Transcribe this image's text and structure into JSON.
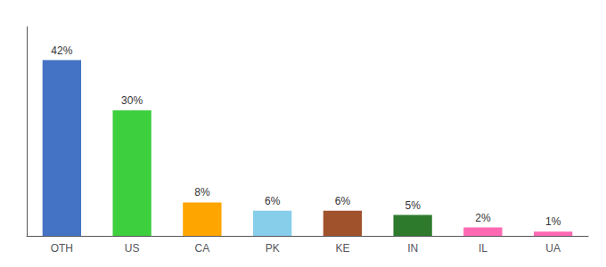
{
  "chart_data": {
    "type": "bar",
    "categories": [
      "OTH",
      "US",
      "CA",
      "PK",
      "KE",
      "IN",
      "IL",
      "UA"
    ],
    "values": [
      42,
      30,
      8,
      6,
      6,
      5,
      2,
      1
    ],
    "value_labels": [
      "42%",
      "30%",
      "8%",
      "6%",
      "6%",
      "5%",
      "2%",
      "1%"
    ],
    "colors": [
      "#4472C4",
      "#3ECF3E",
      "#FFA500",
      "#87CEEB",
      "#A0522D",
      "#2D7A2D",
      "#FF69B4",
      "#FF69B4"
    ],
    "ylim": [
      0,
      50
    ],
    "grid": false,
    "data_labels": true,
    "tick_labels": "x"
  }
}
